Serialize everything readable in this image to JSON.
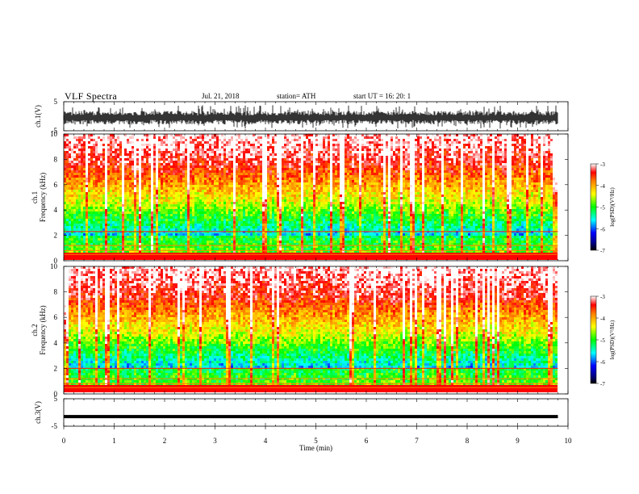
{
  "header": {
    "title": "VLF  Spectra",
    "date": "Jul.  21, 2018",
    "station": "station= ATH",
    "start": "start  UT  =   16: 20: 1"
  },
  "chart_data": [
    {
      "type": "line",
      "id": "ch1-waveform",
      "ylabel": "ch.1(V)",
      "ylim": [
        -5,
        5
      ],
      "yticks": [
        "5",
        "-5"
      ],
      "xlim": [
        0,
        10
      ],
      "description_values": {
        "mean": -0.5,
        "typical_range": [
          -2.5,
          1.5
        ]
      }
    },
    {
      "type": "heatmap",
      "id": "ch1-spectrogram",
      "ylabel": "ch.1\nFrequency (kHz)",
      "ylabel_lines": [
        "ch.1",
        "Frequency  (kHz)"
      ],
      "ylim": [
        0,
        10
      ],
      "yticks": [
        "0",
        "2",
        "4",
        "6",
        "8",
        "10"
      ],
      "xlim": [
        0,
        9.8
      ],
      "colorbar": {
        "label": "log(PSD)(V²/Hz)",
        "range": [
          -7,
          -3
        ],
        "ticks": [
          "-3",
          "-4",
          "-5",
          "-6",
          "-7"
        ]
      }
    },
    {
      "type": "heatmap",
      "id": "ch2-spectrogram",
      "ylabel_lines": [
        "ch.2",
        "Frequency  (kHz)"
      ],
      "ylim": [
        0,
        10
      ],
      "yticks": [
        "0",
        "2",
        "4",
        "6",
        "8",
        "10"
      ],
      "xlim": [
        0,
        9.8
      ],
      "colorbar": {
        "label": "log(PSD)(V²/Hz)",
        "range": [
          -7,
          -3
        ],
        "ticks": [
          "-3",
          "-4",
          "-5",
          "-6",
          "-7"
        ]
      }
    },
    {
      "type": "line",
      "id": "ch3-waveform",
      "ylabel": "ch.3(V)",
      "ylim": [
        -5,
        5
      ],
      "yticks": [
        "5",
        "-5"
      ],
      "xlim": [
        0,
        10
      ],
      "description_values": {
        "mean": -1.5
      }
    }
  ],
  "xaxis": {
    "label": "Time  (min)",
    "ticks": [
      "0",
      "1",
      "2",
      "3",
      "4",
      "5",
      "6",
      "7",
      "8",
      "9",
      "10"
    ],
    "range": [
      0,
      10
    ]
  }
}
